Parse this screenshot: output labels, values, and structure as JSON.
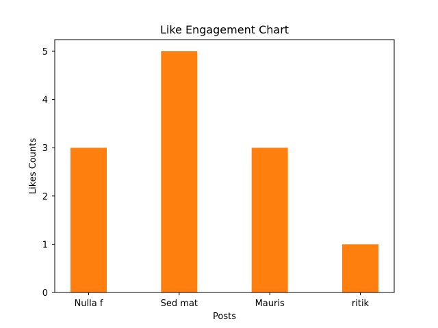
{
  "chart_data": {
    "type": "bar",
    "title": "Like Engagement Chart",
    "xlabel": "Posts",
    "ylabel": "Likes Counts",
    "categories": [
      "Nulla f",
      "Sed mat",
      "Mauris",
      "ritik"
    ],
    "values": [
      3,
      5,
      3,
      1
    ],
    "ylim": [
      0,
      5
    ],
    "yticks": [
      0,
      1,
      2,
      3,
      4,
      5
    ],
    "grid": false,
    "bar_color": "#ff7f0e"
  }
}
